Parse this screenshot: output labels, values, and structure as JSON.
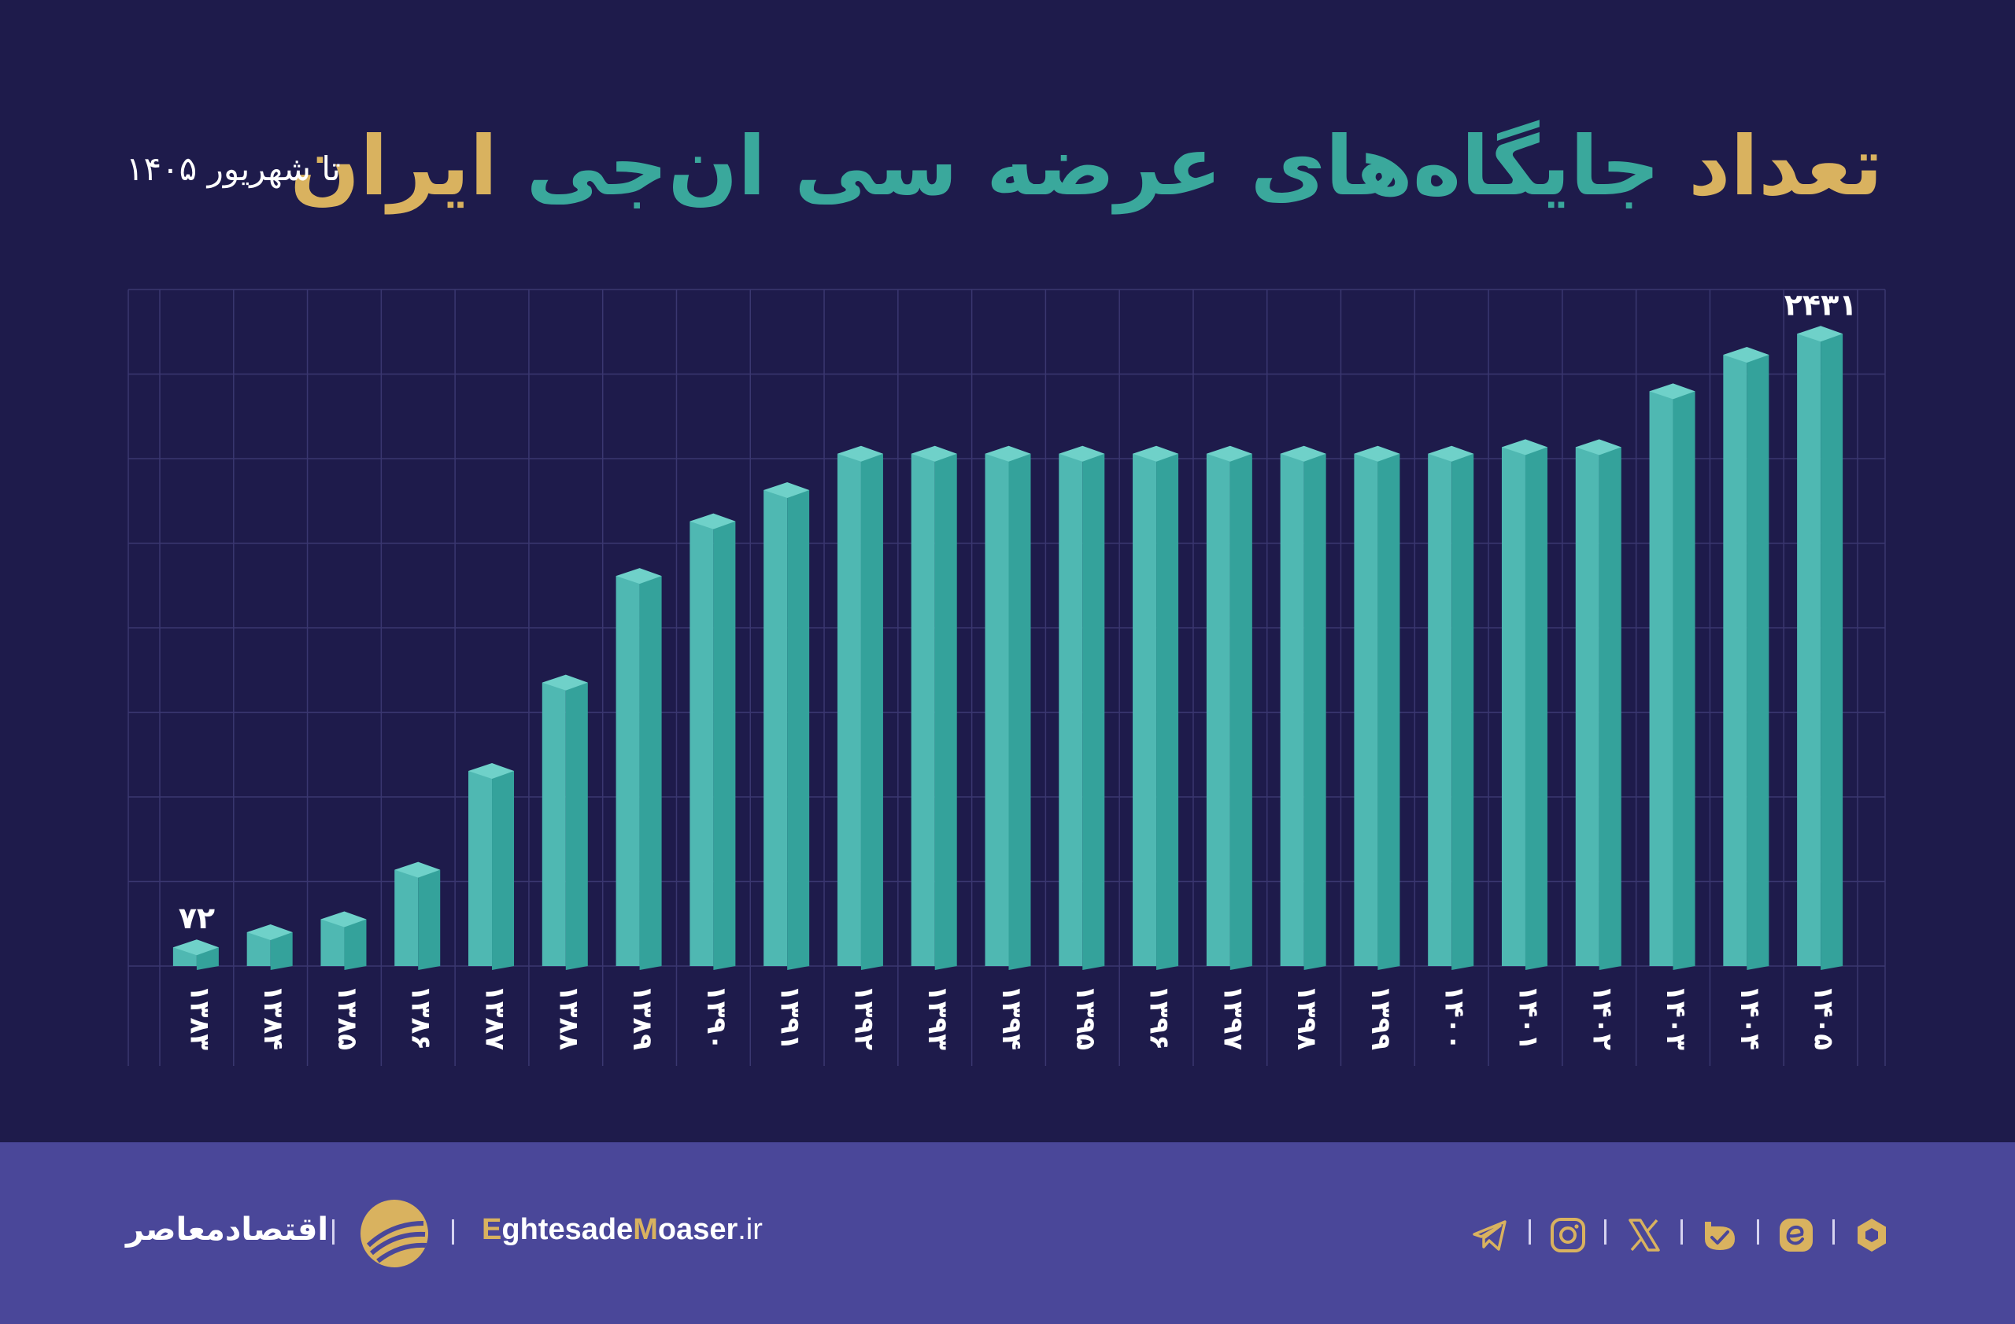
{
  "title": {
    "part1": "تعداد",
    "part2": "جایگاه‌های عرضه سی ان‌جی",
    "part3": "ایران"
  },
  "date_label": "تا شهریور ۱۴۰۵",
  "footer": {
    "brand_fa": "اقتصادمعاصر",
    "url_first_letter_1": "E",
    "url_part_1": "ghtesade",
    "url_first_letter_2": "M",
    "url_part_2": "oaser",
    "url_tld": ".ir",
    "social_icons": [
      "telegram-icon",
      "instagram-icon",
      "x-icon",
      "bale-icon",
      "eitaa-icon",
      "rubika-icon"
    ]
  },
  "colors": {
    "background": "#1e1b4b",
    "footer": "#4a4799",
    "gold": "#d9b25f",
    "teal": "#3aa89c",
    "bar_front": "#4fb8b2",
    "bar_side": "#34a29b",
    "bar_top": "#6fd1c9"
  },
  "chart_data": {
    "type": "bar",
    "style": "3d-columns",
    "categories": [
      "۱۳۸۳",
      "۱۳۸۴",
      "۱۳۸۵",
      "۱۳۸۶",
      "۱۳۸۷",
      "۱۳۸۸",
      "۱۳۸۹",
      "۱۳۹۰",
      "۱۳۹۱",
      "۱۳۹۲",
      "۱۳۹۳",
      "۱۳۹۴",
      "۱۳۹۵",
      "۱۳۹۶",
      "۱۳۹۷",
      "۱۳۹۸",
      "۱۳۹۹",
      "۱۴۰۰",
      "۱۴۰۱",
      "۱۴۰۲",
      "۱۴۰۳",
      "۱۴۰۴",
      "۱۴۰۵"
    ],
    "values": [
      72,
      130,
      180,
      370,
      750,
      1090,
      1500,
      1710,
      1830,
      1970,
      1970,
      1970,
      1970,
      1970,
      1970,
      1970,
      1970,
      1970,
      1995,
      1995,
      2210,
      2350,
      2431
    ],
    "data_labels": [
      {
        "index": 0,
        "text": "۷۲"
      },
      {
        "index": 22,
        "text": "۲۴۳۱"
      }
    ],
    "ylim": [
      0,
      2450
    ],
    "grid": true,
    "x_tick_rotation": 90
  }
}
